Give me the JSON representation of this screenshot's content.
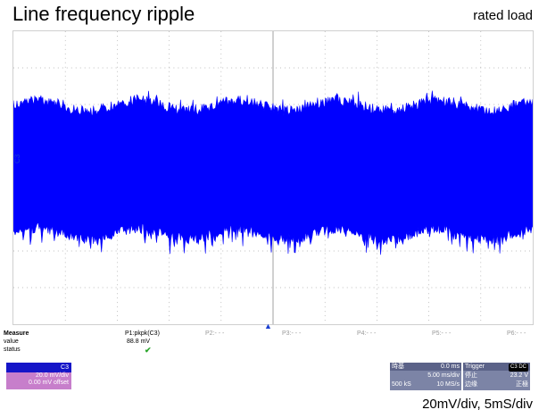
{
  "title": "Line frequency ripple",
  "subtitle": "rated load",
  "caption": "20mV/div, 5mS/div",
  "channel_label": "C3",
  "measure": {
    "header": "Measure",
    "rows": [
      {
        "label": "value",
        "p1_value": "88.8 mV"
      },
      {
        "label": "status"
      }
    ],
    "p1_name": "P1:pkpk(C3)",
    "params": [
      "P2:- - -",
      "P3:- - -",
      "P4:- - -",
      "P5:- - -",
      "P6:- - -"
    ]
  },
  "channel_box": {
    "name": "C3",
    "vdiv": "20.0 mV/div",
    "offset": "0.00 mV offset"
  },
  "timebase": {
    "label": "時基",
    "delay": "0.0 ms",
    "tdiv": "5.00 ms/div",
    "samples": "500 kS",
    "rate": "10 MS/s"
  },
  "trigger": {
    "label": "Trigger",
    "channel": "C3 DC",
    "mode": "停止",
    "level": "23.2 V",
    "type": "边缘",
    "slope": "正極"
  },
  "colors": {
    "trace": "#0000ff",
    "grid": "#9a9a9a"
  }
}
